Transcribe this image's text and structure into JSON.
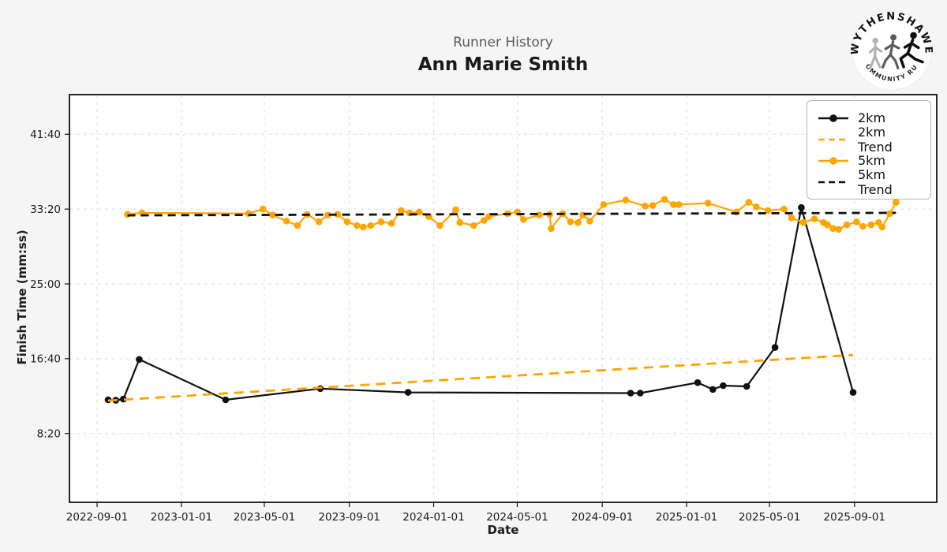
{
  "header": {
    "subtitle": "Runner History",
    "title": "Ann Marie Smith"
  },
  "logo": {
    "top_text": "WYTHENSHAWE",
    "bottom_text": "COMMUNITY RUN"
  },
  "axis_labels": {
    "x": "Date",
    "y": "Finish Time (mm:ss)"
  },
  "colors": {
    "background": "#f5f5f5",
    "plot_background": "#ffffff",
    "grid": "#dedede",
    "axis": "#111111",
    "orange": "#ffa500",
    "black": "#111111",
    "tick_text": "#1a1a1a"
  },
  "legend": {
    "items": [
      {
        "label": "2km",
        "type": "line-marker",
        "color": "#111111"
      },
      {
        "label": "2km Trend",
        "type": "dashed",
        "color": "#ffa500"
      },
      {
        "label": "5km",
        "type": "line-marker",
        "color": "#ffa500"
      },
      {
        "label": "5km Trend",
        "type": "dashed",
        "color": "#111111"
      }
    ]
  },
  "chart_data": {
    "type": "line",
    "title": "Runner History",
    "subtitle": "Ann Marie Smith",
    "xlabel": "Date",
    "ylabel": "Finish Time (mm:ss)",
    "grid": true,
    "legend_position": "upper right",
    "x_ticks": [
      "2022-09-01",
      "2023-01-01",
      "2023-05-01",
      "2023-09-01",
      "2024-01-01",
      "2024-05-01",
      "2024-09-01",
      "2025-01-01",
      "2025-05-01",
      "2025-09-01"
    ],
    "y_ticks": [
      "41:40",
      "33:20",
      "25:00",
      "16:40",
      "8:20"
    ],
    "x_range": [
      "2022-07-23",
      "2025-12-29"
    ],
    "y_range_seconds": [
      40,
      2765
    ],
    "series": [
      {
        "name": "2km",
        "color": "#111111",
        "style": "solid",
        "markers": true,
        "points": [
          {
            "date": "2022-09-17",
            "time": "12:05"
          },
          {
            "date": "2022-09-28",
            "time": "12:02"
          },
          {
            "date": "2022-10-09",
            "time": "12:10"
          },
          {
            "date": "2022-11-01",
            "time": "16:35"
          },
          {
            "date": "2023-03-06",
            "time": "12:05"
          },
          {
            "date": "2023-07-21",
            "time": "13:20"
          },
          {
            "date": "2023-11-25",
            "time": "12:55"
          },
          {
            "date": "2024-10-12",
            "time": "12:50"
          },
          {
            "date": "2024-10-26",
            "time": "12:50"
          },
          {
            "date": "2025-01-17",
            "time": "14:00"
          },
          {
            "date": "2025-02-08",
            "time": "13:15"
          },
          {
            "date": "2025-02-23",
            "time": "13:40"
          },
          {
            "date": "2025-03-29",
            "time": "13:35"
          },
          {
            "date": "2025-05-09",
            "time": "17:55"
          },
          {
            "date": "2025-06-16",
            "time": "33:30"
          },
          {
            "date": "2025-08-30",
            "time": "12:55"
          }
        ]
      },
      {
        "name": "2km Trend",
        "color": "#ffa500",
        "style": "dashed",
        "markers": false,
        "points": [
          {
            "date": "2022-09-17",
            "time": "12:00"
          },
          {
            "date": "2025-08-30",
            "time": "17:05"
          }
        ]
      },
      {
        "name": "5km",
        "color": "#ffa500",
        "style": "solid",
        "markers": true,
        "points": [
          {
            "date": "2022-10-15",
            "time": "32:45"
          },
          {
            "date": "2022-11-05",
            "time": "32:55"
          },
          {
            "date": "2023-04-08",
            "time": "32:50"
          },
          {
            "date": "2023-04-29",
            "time": "33:20"
          },
          {
            "date": "2023-05-13",
            "time": "32:40"
          },
          {
            "date": "2023-06-02",
            "time": "32:00"
          },
          {
            "date": "2023-06-18",
            "time": "31:30"
          },
          {
            "date": "2023-07-02",
            "time": "32:45"
          },
          {
            "date": "2023-07-19",
            "time": "31:55"
          },
          {
            "date": "2023-08-01",
            "time": "32:40"
          },
          {
            "date": "2023-08-15",
            "time": "32:45"
          },
          {
            "date": "2023-08-29",
            "time": "31:55"
          },
          {
            "date": "2023-09-12",
            "time": "31:30"
          },
          {
            "date": "2023-09-21",
            "time": "31:20"
          },
          {
            "date": "2023-10-02",
            "time": "31:30"
          },
          {
            "date": "2023-10-17",
            "time": "31:55"
          },
          {
            "date": "2023-11-01",
            "time": "31:45"
          },
          {
            "date": "2023-11-15",
            "time": "33:10"
          },
          {
            "date": "2023-11-27",
            "time": "32:55"
          },
          {
            "date": "2023-12-11",
            "time": "33:00"
          },
          {
            "date": "2023-12-25",
            "time": "32:30"
          },
          {
            "date": "2024-01-10",
            "time": "31:30"
          },
          {
            "date": "2024-02-02",
            "time": "33:15"
          },
          {
            "date": "2024-02-08",
            "time": "31:50"
          },
          {
            "date": "2024-02-28",
            "time": "31:30"
          },
          {
            "date": "2024-03-14",
            "time": "32:05"
          },
          {
            "date": "2024-03-21",
            "time": "32:30"
          },
          {
            "date": "2024-04-17",
            "time": "32:50"
          },
          {
            "date": "2024-05-01",
            "time": "33:00"
          },
          {
            "date": "2024-05-10",
            "time": "32:10"
          },
          {
            "date": "2024-06-02",
            "time": "32:40"
          },
          {
            "date": "2024-06-17",
            "time": "32:45"
          },
          {
            "date": "2024-06-19",
            "time": "31:10"
          },
          {
            "date": "2024-07-06",
            "time": "32:50"
          },
          {
            "date": "2024-07-17",
            "time": "31:55"
          },
          {
            "date": "2024-07-28",
            "time": "31:50"
          },
          {
            "date": "2024-08-04",
            "time": "32:40"
          },
          {
            "date": "2024-08-14",
            "time": "32:00"
          },
          {
            "date": "2024-09-03",
            "time": "33:50"
          },
          {
            "date": "2024-10-05",
            "time": "34:20"
          },
          {
            "date": "2024-11-02",
            "time": "33:40"
          },
          {
            "date": "2024-11-13",
            "time": "33:45"
          },
          {
            "date": "2024-11-30",
            "time": "34:25"
          },
          {
            "date": "2024-12-13",
            "time": "33:50"
          },
          {
            "date": "2024-12-21",
            "time": "33:50"
          },
          {
            "date": "2025-02-01",
            "time": "34:00"
          },
          {
            "date": "2025-03-14",
            "time": "33:00"
          },
          {
            "date": "2025-04-01",
            "time": "34:05"
          },
          {
            "date": "2025-04-12",
            "time": "33:35"
          },
          {
            "date": "2025-04-29",
            "time": "33:10"
          },
          {
            "date": "2025-05-22",
            "time": "33:20"
          },
          {
            "date": "2025-06-02",
            "time": "32:20"
          },
          {
            "date": "2025-06-19",
            "time": "31:50"
          },
          {
            "date": "2025-07-05",
            "time": "32:15"
          },
          {
            "date": "2025-07-18",
            "time": "31:50"
          },
          {
            "date": "2025-07-24",
            "time": "31:35"
          },
          {
            "date": "2025-08-01",
            "time": "31:10"
          },
          {
            "date": "2025-08-09",
            "time": "31:05"
          },
          {
            "date": "2025-08-21",
            "time": "31:35"
          },
          {
            "date": "2025-09-04",
            "time": "31:55"
          },
          {
            "date": "2025-09-13",
            "time": "31:25"
          },
          {
            "date": "2025-09-25",
            "time": "31:35"
          },
          {
            "date": "2025-10-06",
            "time": "31:50"
          },
          {
            "date": "2025-10-11",
            "time": "31:20"
          },
          {
            "date": "2025-10-22",
            "time": "32:50"
          },
          {
            "date": "2025-10-31",
            "time": "34:05"
          }
        ]
      },
      {
        "name": "5km Trend",
        "color": "#111111",
        "style": "dashed",
        "markers": false,
        "points": [
          {
            "date": "2022-10-15",
            "time": "32:38"
          },
          {
            "date": "2025-10-31",
            "time": "32:55"
          }
        ]
      }
    ]
  }
}
